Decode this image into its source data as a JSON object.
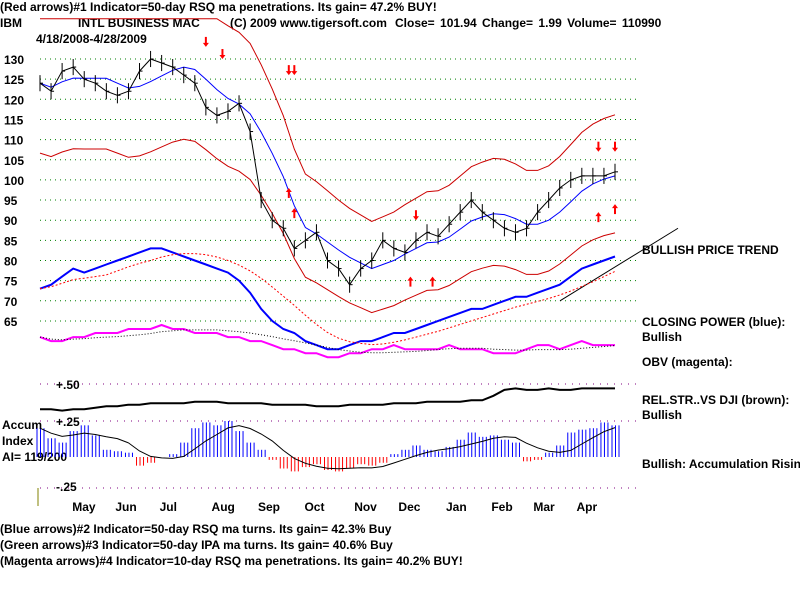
{
  "header": {
    "line1": "(Red arrows)#1 Indicator=50-day RSQ ma penetrations. Its gain= 47.2% BUY!",
    "ticker": "IBM",
    "name": "INTL BUSINESS MAC",
    "copyright": "(C) 2009 www.tigersoft.com",
    "quote": "Close=  101.94  Change= 1.99 Volume= 110990",
    "range": "4/18/2008-4/28/2009"
  },
  "side_labels": {
    "trend": "BULLISH PRICE TREND",
    "cp": "CLOSING POWER (blue):",
    "cp_val": "Bullish",
    "obv": "OBV (magenta):",
    "rs": "REL.STR..VS DJI (brown):",
    "rs_val": "Bullish",
    "ai": "Bullish: Accumulation Rising",
    "accum1": "Accum",
    "accum2": "Index",
    "accum3": "AI= 119/200"
  },
  "footer": [
    "(Blue arrows)#2 Indicator=50-day RSQ ma turns. Its gain= 42.3% Buy",
    "(Green arrows)#3 Indicator=50-day IPA ma turns. Its gain= 40.6% Buy",
    "(Magenta arrows)#4 Indicator=10-day RSQ ma penetrations. Its gain= 40.2% BUY!"
  ],
  "chart_data": {
    "type": "line",
    "title": "INTL BUSINESS MAC (IBM) 4/18/2008-4/28/2009",
    "price_ylim": [
      62,
      133
    ],
    "price_ticks": [
      "130",
      "125",
      "120",
      "115",
      "110",
      "105",
      "100",
      "95",
      "90",
      "85",
      "80",
      "75",
      "70",
      "65"
    ],
    "months": [
      {
        "label": "May",
        "week": 4
      },
      {
        "label": "Jun",
        "week": 7.9
      },
      {
        "label": "Jul",
        "week": 11.9
      },
      {
        "label": "Aug",
        "week": 16.6
      },
      {
        "label": "Sep",
        "week": 20.8
      },
      {
        "label": "Oct",
        "week": 25
      },
      {
        "label": "Nov",
        "week": 29.5
      },
      {
        "label": "Dec",
        "week": 33.5
      },
      {
        "label": "Jan",
        "week": 37.8
      },
      {
        "label": "Feb",
        "week": 41.9
      },
      {
        "label": "Mar",
        "week": 45.7
      },
      {
        "label": "Apr",
        "week": 49.6
      }
    ],
    "price": [
      124,
      122,
      127,
      128,
      125,
      124,
      122,
      121,
      122,
      127,
      130,
      129,
      128,
      126,
      124,
      118,
      116,
      117,
      119,
      112,
      95,
      90,
      88,
      83,
      85,
      87,
      80,
      78,
      74,
      78,
      80,
      85,
      83,
      82,
      85,
      87,
      86,
      89,
      92,
      95,
      92,
      90,
      88,
      87,
      88,
      92,
      95,
      98,
      100,
      101,
      101,
      101,
      102
    ],
    "closing_power": [
      73,
      74,
      76,
      78,
      77,
      78,
      79,
      80,
      81,
      82,
      83,
      83,
      82,
      81,
      80,
      79,
      78,
      77,
      75,
      72,
      68,
      65,
      63,
      62,
      60,
      59,
      58,
      58,
      59,
      60,
      60,
      61,
      62,
      62,
      63,
      64,
      65,
      66,
      67,
      68,
      68,
      69,
      70,
      71,
      71,
      72,
      73,
      74,
      76,
      78,
      79,
      80,
      81
    ],
    "obv": [
      61,
      60,
      60,
      61,
      61,
      62,
      62,
      62,
      63,
      63,
      63,
      64,
      63,
      63,
      62,
      62,
      62,
      61,
      61,
      60,
      60,
      59,
      58,
      58,
      57,
      57,
      56,
      56,
      57,
      57,
      58,
      58,
      59,
      58,
      58,
      58,
      58,
      59,
      58,
      58,
      58,
      57,
      57,
      57,
      58,
      59,
      59,
      58,
      59,
      60,
      59,
      59,
      59
    ],
    "rel_strength": {
      "ticks": [
        "+.50"
      ],
      "ylim": [
        0.25,
        0.5
      ],
      "values": [
        0.33,
        0.33,
        0.32,
        0.33,
        0.33,
        0.34,
        0.35,
        0.35,
        0.36,
        0.36,
        0.37,
        0.37,
        0.37,
        0.37,
        0.38,
        0.38,
        0.38,
        0.37,
        0.37,
        0.37,
        0.37,
        0.36,
        0.36,
        0.36,
        0.36,
        0.35,
        0.35,
        0.35,
        0.36,
        0.36,
        0.36,
        0.36,
        0.37,
        0.37,
        0.37,
        0.38,
        0.38,
        0.38,
        0.38,
        0.39,
        0.39,
        0.42,
        0.46,
        0.47,
        0.46,
        0.46,
        0.47,
        0.46,
        0.46,
        0.47,
        0.47,
        0.47,
        0.47
      ]
    },
    "accum_index": {
      "ticks": [
        "+.25",
        "-.25"
      ],
      "ylim": [
        -0.25,
        0.25
      ],
      "values": [
        0.2,
        0.13,
        0.1,
        0.18,
        0.22,
        0.15,
        0.05,
        0.04,
        0.03,
        -0.06,
        -0.04,
        0,
        0.02,
        0.1,
        0.2,
        0.24,
        0.22,
        0.25,
        0.18,
        0.1,
        0.05,
        -0.02,
        -0.08,
        -0.1,
        -0.07,
        -0.05,
        -0.09,
        -0.1,
        -0.08,
        -0.05,
        -0.06,
        -0.04,
        0.02,
        0.05,
        0.08,
        0.05,
        0.04,
        0.07,
        0.12,
        0.17,
        0.14,
        0.15,
        0.12,
        0.1,
        -0.03,
        -0.02,
        0.03,
        0.08,
        0.17,
        0.19,
        0.2,
        0.24,
        0.22
      ]
    },
    "arrows": [
      {
        "week": 15,
        "dir": "down",
        "price": 133
      },
      {
        "week": 16.5,
        "dir": "down",
        "price": 130
      },
      {
        "week": 22.5,
        "dir": "down",
        "price": 126
      },
      {
        "week": 23,
        "dir": "down",
        "price": 126
      },
      {
        "week": 22.5,
        "dir": "up",
        "price": 98
      },
      {
        "week": 23,
        "dir": "up",
        "price": 93
      },
      {
        "week": 34,
        "dir": "down",
        "price": 90
      },
      {
        "week": 33.5,
        "dir": "up",
        "price": 76
      },
      {
        "week": 35.5,
        "dir": "up",
        "price": 76
      },
      {
        "week": 50.5,
        "dir": "down",
        "price": 107
      },
      {
        "week": 52,
        "dir": "down",
        "price": 107
      },
      {
        "week": 50.5,
        "dir": "up",
        "price": 92
      },
      {
        "week": 52,
        "dir": "up",
        "price": 94
      }
    ],
    "colors": {
      "price": "#000000",
      "band": "#cc0000",
      "ma": "#0000ff",
      "cp": "#0000ff",
      "obv": "#ff00ff",
      "ai_pos": "#0000ff",
      "ai_neg": "#ff0000"
    }
  }
}
